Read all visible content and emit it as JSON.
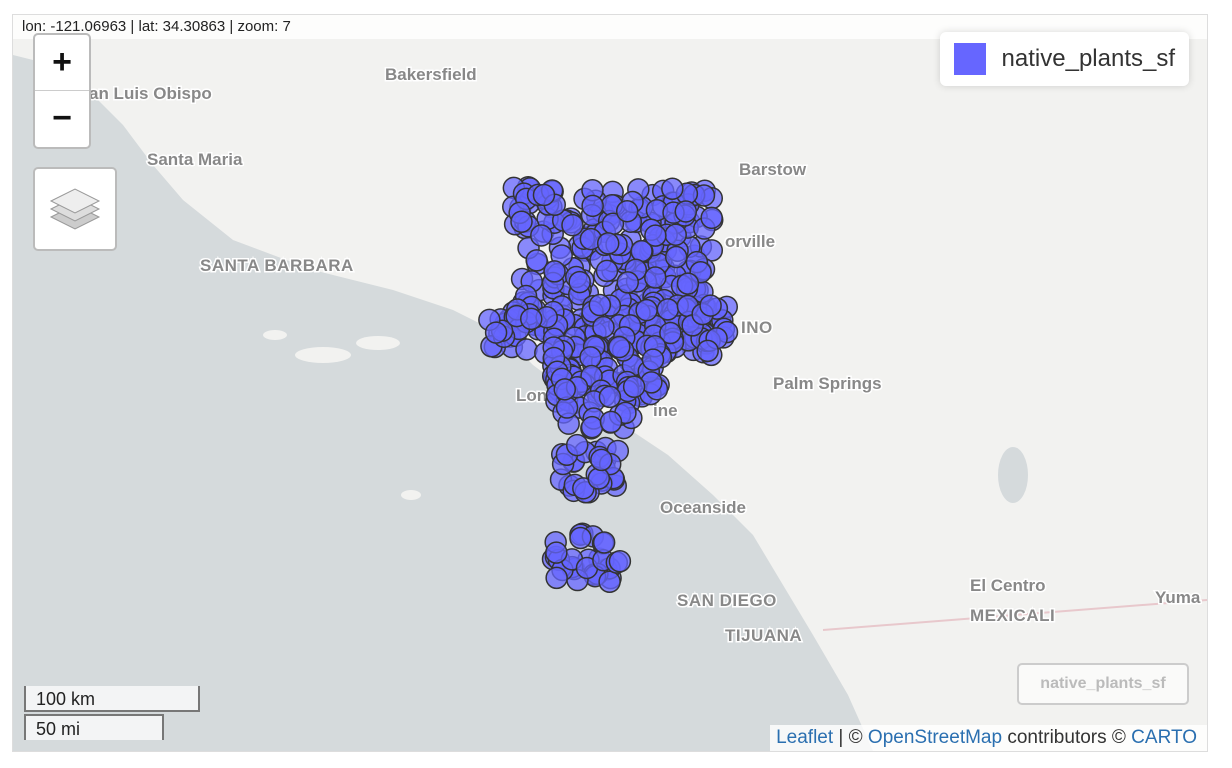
{
  "status_bar": {
    "text": "lon: -121.06963 | lat: 34.30863 | zoom: 7"
  },
  "zoom_controls": {
    "zoom_in": "+",
    "zoom_out": "−"
  },
  "map_labels": [
    "Bakersfield",
    "an Luis Obispo",
    "Santa Maria",
    "Barstow",
    "orville",
    "SANTA BARBARA",
    "INO",
    "Palm Springs",
    "Long",
    "ine",
    "Oceanside",
    "El Centro",
    "MEXICALI",
    "SAN DIEGO",
    "TIJUANA",
    "Yuma"
  ],
  "legend": {
    "label": "native_plants_sf"
  },
  "overlay_button": {
    "label": "native_plants_sf"
  },
  "scale": {
    "metric": "100 km",
    "imperial": "50 mi"
  },
  "attribution": {
    "leaflet": "Leaflet",
    "sep": "| ©",
    "osm": "OpenStreetMap",
    "contributors": "contributors ©",
    "carto": "CARTO"
  }
}
